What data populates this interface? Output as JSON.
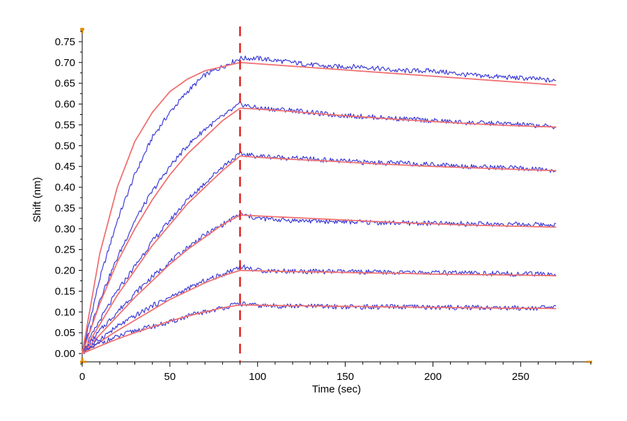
{
  "chart_data": {
    "type": "line",
    "title": "",
    "xlabel": "Time (sec)",
    "ylabel": "Shift (nm)",
    "xlim": [
      0,
      290
    ],
    "ylim": [
      -0.02,
      0.78
    ],
    "x_ticks": [
      0,
      50,
      100,
      150,
      200,
      250
    ],
    "x_tick_labels": [
      "0",
      "50",
      "100",
      "150",
      "200",
      "250"
    ],
    "y_ticks": [
      0.0,
      0.05,
      0.1,
      0.15,
      0.2,
      0.25,
      0.3,
      0.35,
      0.4,
      0.45,
      0.5,
      0.55,
      0.6,
      0.65,
      0.7,
      0.75
    ],
    "y_tick_labels": [
      "0.00",
      "0.05",
      "0.10",
      "0.15",
      "0.20",
      "0.25",
      "0.30",
      "0.35",
      "0.40",
      "0.45",
      "0.50",
      "0.55",
      "0.60",
      "0.65",
      "0.70",
      "0.75"
    ],
    "grid": false,
    "legend": false,
    "association_end_time": 90,
    "dissociation_end_time": 270,
    "colors": {
      "measured": "#3a3ad6",
      "fit": "#f07070",
      "phase_marker": "#e02020",
      "axis_marker": "#e08a00"
    },
    "series": [
      {
        "style": "measured",
        "x": [
          0,
          10,
          20,
          30,
          40,
          50,
          60,
          70,
          80,
          90,
          100,
          120,
          140,
          160,
          180,
          200,
          220,
          240,
          260,
          270
        ],
        "values": [
          0.0,
          0.18,
          0.32,
          0.43,
          0.52,
          0.58,
          0.63,
          0.67,
          0.69,
          0.71,
          0.71,
          0.7,
          0.69,
          0.69,
          0.68,
          0.68,
          0.67,
          0.665,
          0.66,
          0.655
        ]
      },
      {
        "style": "fit",
        "x": [
          0,
          10,
          20,
          30,
          40,
          50,
          60,
          70,
          80,
          90,
          100,
          120,
          140,
          160,
          180,
          200,
          220,
          240,
          260,
          270
        ],
        "values": [
          0.0,
          0.24,
          0.4,
          0.51,
          0.58,
          0.63,
          0.66,
          0.68,
          0.69,
          0.7,
          0.697,
          0.691,
          0.685,
          0.679,
          0.673,
          0.667,
          0.661,
          0.655,
          0.649,
          0.646
        ]
      },
      {
        "style": "measured",
        "x": [
          0,
          10,
          20,
          30,
          40,
          50,
          60,
          70,
          80,
          90,
          100,
          120,
          140,
          160,
          180,
          200,
          220,
          240,
          260,
          270
        ],
        "values": [
          0.0,
          0.13,
          0.23,
          0.32,
          0.39,
          0.45,
          0.5,
          0.54,
          0.57,
          0.6,
          0.59,
          0.585,
          0.575,
          0.57,
          0.565,
          0.56,
          0.555,
          0.553,
          0.548,
          0.545
        ]
      },
      {
        "style": "fit",
        "x": [
          0,
          10,
          20,
          30,
          40,
          50,
          60,
          70,
          80,
          90,
          100,
          120,
          140,
          160,
          180,
          200,
          220,
          240,
          260,
          270
        ],
        "values": [
          0.0,
          0.12,
          0.22,
          0.3,
          0.37,
          0.43,
          0.48,
          0.52,
          0.56,
          0.59,
          0.588,
          0.582,
          0.575,
          0.569,
          0.563,
          0.558,
          0.553,
          0.549,
          0.546,
          0.545
        ]
      },
      {
        "style": "measured",
        "x": [
          0,
          10,
          20,
          30,
          40,
          50,
          60,
          70,
          80,
          90,
          100,
          120,
          140,
          160,
          180,
          200,
          220,
          240,
          260,
          270
        ],
        "values": [
          0.0,
          0.08,
          0.15,
          0.21,
          0.27,
          0.32,
          0.37,
          0.41,
          0.45,
          0.48,
          0.475,
          0.47,
          0.465,
          0.46,
          0.458,
          0.455,
          0.45,
          0.447,
          0.443,
          0.44
        ]
      },
      {
        "style": "fit",
        "x": [
          0,
          10,
          20,
          30,
          40,
          50,
          60,
          70,
          80,
          90,
          100,
          120,
          140,
          160,
          180,
          200,
          220,
          240,
          260,
          270
        ],
        "values": [
          0.0,
          0.07,
          0.14,
          0.2,
          0.26,
          0.31,
          0.36,
          0.4,
          0.44,
          0.475,
          0.472,
          0.467,
          0.463,
          0.458,
          0.454,
          0.45,
          0.447,
          0.444,
          0.441,
          0.44
        ]
      },
      {
        "style": "measured",
        "x": [
          0,
          10,
          20,
          30,
          40,
          50,
          60,
          70,
          80,
          90,
          100,
          120,
          140,
          160,
          180,
          200,
          220,
          240,
          260,
          270
        ],
        "values": [
          0.0,
          0.055,
          0.1,
          0.145,
          0.185,
          0.22,
          0.255,
          0.285,
          0.31,
          0.335,
          0.325,
          0.32,
          0.318,
          0.316,
          0.314,
          0.313,
          0.312,
          0.311,
          0.31,
          0.31
        ]
      },
      {
        "style": "fit",
        "x": [
          0,
          10,
          20,
          30,
          40,
          50,
          60,
          70,
          80,
          90,
          100,
          120,
          140,
          160,
          180,
          200,
          220,
          240,
          260,
          270
        ],
        "values": [
          0.0,
          0.045,
          0.09,
          0.135,
          0.175,
          0.215,
          0.25,
          0.28,
          0.31,
          0.333,
          0.331,
          0.327,
          0.323,
          0.319,
          0.315,
          0.312,
          0.309,
          0.307,
          0.305,
          0.304
        ]
      },
      {
        "style": "measured",
        "x": [
          0,
          10,
          20,
          30,
          40,
          50,
          60,
          70,
          80,
          90,
          100,
          120,
          140,
          160,
          180,
          200,
          220,
          240,
          260,
          270
        ],
        "values": [
          0.0,
          0.035,
          0.065,
          0.09,
          0.115,
          0.135,
          0.155,
          0.175,
          0.19,
          0.21,
          0.2,
          0.198,
          0.197,
          0.196,
          0.195,
          0.194,
          0.193,
          0.192,
          0.191,
          0.19
        ]
      },
      {
        "style": "fit",
        "x": [
          0,
          10,
          20,
          30,
          40,
          50,
          60,
          70,
          80,
          90,
          100,
          120,
          140,
          160,
          180,
          200,
          220,
          240,
          260,
          270
        ],
        "values": [
          0.0,
          0.028,
          0.055,
          0.08,
          0.105,
          0.13,
          0.15,
          0.17,
          0.187,
          0.2,
          0.199,
          0.197,
          0.196,
          0.194,
          0.193,
          0.191,
          0.19,
          0.189,
          0.188,
          0.187
        ]
      },
      {
        "style": "measured",
        "x": [
          0,
          10,
          20,
          30,
          40,
          50,
          60,
          70,
          80,
          90,
          100,
          120,
          140,
          160,
          180,
          200,
          220,
          240,
          260,
          270
        ],
        "values": [
          0.0,
          0.025,
          0.04,
          0.055,
          0.065,
          0.075,
          0.09,
          0.1,
          0.11,
          0.12,
          0.115,
          0.114,
          0.113,
          0.112,
          0.112,
          0.111,
          0.111,
          0.11,
          0.11,
          0.11
        ]
      },
      {
        "style": "fit",
        "x": [
          0,
          10,
          20,
          30,
          40,
          50,
          60,
          70,
          80,
          90,
          100,
          120,
          140,
          160,
          180,
          200,
          220,
          240,
          260,
          270
        ],
        "values": [
          0.0,
          0.018,
          0.035,
          0.05,
          0.064,
          0.078,
          0.09,
          0.1,
          0.11,
          0.117,
          0.116,
          0.115,
          0.114,
          0.113,
          0.112,
          0.111,
          0.11,
          0.109,
          0.109,
          0.108
        ]
      }
    ]
  }
}
